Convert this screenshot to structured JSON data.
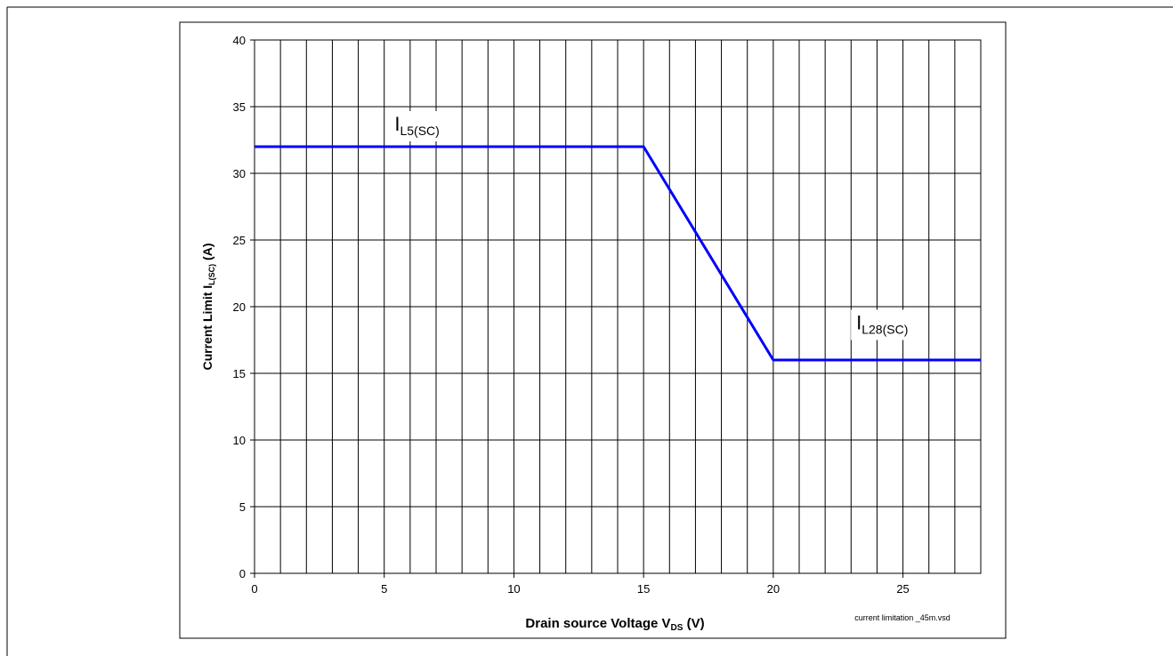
{
  "chart_data": {
    "type": "line",
    "xlabel": "Drain source Voltage V",
    "xlabel_sub": "DS",
    "xlabel_unit": " (V)",
    "ylabel": "Current Limit I",
    "ylabel_sub": "L(SC)",
    "ylabel_unit": " (A)",
    "xlim": [
      0,
      28
    ],
    "ylim": [
      0,
      40
    ],
    "x_ticks": [
      0,
      5,
      10,
      15,
      20,
      25
    ],
    "y_ticks": [
      0,
      5,
      10,
      15,
      20,
      25,
      30,
      35,
      40
    ],
    "x_gridlines_every": 1,
    "y_gridlines_every": 5,
    "grid": true,
    "series": [
      {
        "color": "#0000ff",
        "points": [
          {
            "x": 0,
            "y": 32
          },
          {
            "x": 15,
            "y": 32
          },
          {
            "x": 20,
            "y": 16
          },
          {
            "x": 28,
            "y": 16
          }
        ]
      }
    ],
    "annotations": [
      {
        "id": "il5",
        "text": "I",
        "sub": "L5(SC)",
        "x": 5.4,
        "y": 33.2
      },
      {
        "id": "il28",
        "text": "I",
        "sub": "L28(SC)",
        "x": 23.2,
        "y": 18.3
      }
    ],
    "footnote": "current limitation _45m.vsd"
  },
  "colors": {
    "line": "#0000ff",
    "grid": "#000000",
    "background": "#ffffff"
  }
}
